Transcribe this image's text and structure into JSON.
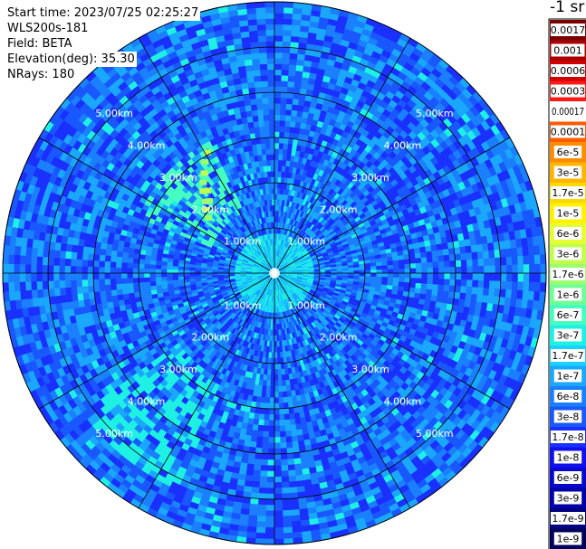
{
  "info": {
    "start_time": "Start time: 2023/07/25 02:25:27",
    "instrument": "WLS200s-181",
    "field": "Field: BETA",
    "elevation": "Elevation(deg): 35.30",
    "nrays": "NRays: 180"
  },
  "colorbar": {
    "unit": "-1 sr",
    "labels": [
      "0.0017",
      "0.001",
      "0.0006",
      "0.0003",
      "0.00017",
      "0.0001",
      "6e-5",
      "3e-5",
      "1.7e-5",
      "1e-5",
      "6e-6",
      "3e-6",
      "1.7e-6",
      "1e-6",
      "6e-7",
      "3e-7",
      "1.7e-7",
      "1e-7",
      "6e-8",
      "3e-8",
      "1.7e-8",
      "1e-8",
      "6e-9",
      "3e-9",
      "1.7e-9",
      "1e-9"
    ],
    "colors": [
      "#7a0000",
      "#a80000",
      "#d00000",
      "#ff1a1a",
      "#ffffff",
      "#ff5a00",
      "#ff8c00",
      "#ffb400",
      "#ffd800",
      "#fff200",
      "#e6ff33",
      "#c2ff4d",
      "#9cff6e",
      "#70ff96",
      "#44ffc0",
      "#1ef0e4",
      "#19d2ff",
      "#1aa8ff",
      "#1a80ff",
      "#1a58ff",
      "#1a30ff",
      "#1010ee",
      "#0808cc",
      "#0000aa",
      "#000080",
      "#00005c"
    ]
  },
  "chart_data": {
    "type": "heatmap",
    "projection": "polar-ppi",
    "field": "BETA",
    "elevation_deg": 35.3,
    "nrays": 180,
    "range_rings_km": [
      1,
      2,
      3,
      4,
      5
    ],
    "ring_labels": [
      "1.00km",
      "2.00km",
      "3.00km",
      "4.00km",
      "5.00km"
    ],
    "max_range_km": 6.0,
    "spokes_deg": [
      0,
      30,
      60,
      90,
      120,
      150,
      180,
      210,
      240,
      270,
      300,
      330
    ],
    "color_scale": "log",
    "value_range": [
      1e-09,
      0.0017
    ],
    "background_level": "1e-8 to 6e-8",
    "features": [
      {
        "azimuth_deg": [
          205,
          235
        ],
        "range_km": [
          2.6,
          5.2
        ],
        "level": "1e-7 to 3e-7"
      },
      {
        "azimuth_deg": [
          293,
          335
        ],
        "range_km": [
          1.5,
          3.2
        ],
        "level": "1e-6 to 1e-5"
      },
      {
        "azimuth_deg": [
          0,
          360
        ],
        "range_km": [
          0.0,
          0.8
        ],
        "level": "3e-8 to 1.7e-7"
      },
      {
        "azimuth_deg": [
          170,
          175
        ],
        "range_km": [
          0.2,
          0.9
        ],
        "level": "1.7e-6 to 1e-5"
      }
    ]
  }
}
